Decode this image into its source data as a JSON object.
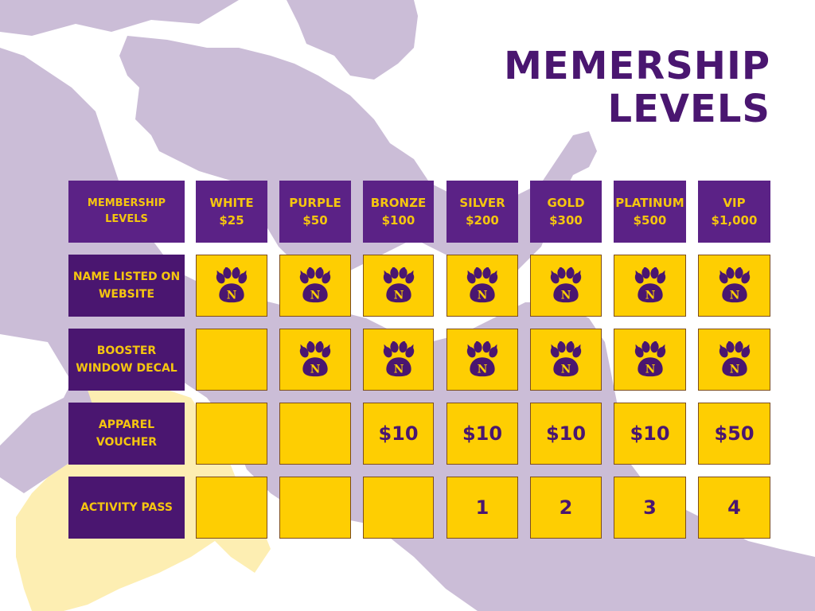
{
  "title": {
    "line1": "MEMERSHIP",
    "line2": "LEVELS"
  },
  "colors": {
    "purple": "#4a1670",
    "purple_header": "#5b2286",
    "gold": "#fece02",
    "lavender": "#cbbdd7",
    "cream": "#fdeeb2"
  },
  "table": {
    "corner_header": "MEMBERSHIP\nLEVELS",
    "levels": [
      {
        "name": "WHITE",
        "price": "$25"
      },
      {
        "name": "PURPLE",
        "price": "$50"
      },
      {
        "name": "BRONZE",
        "price": "$100"
      },
      {
        "name": "SILVER",
        "price": "$200"
      },
      {
        "name": "GOLD",
        "price": "$300"
      },
      {
        "name": "PLATINUM",
        "price": "$500"
      },
      {
        "name": "VIP",
        "price": "$1,000"
      }
    ],
    "rows": [
      {
        "label": "NAME LISTED ON\nWEBSITE",
        "cells": [
          "paw-icon",
          "paw-icon",
          "paw-icon",
          "paw-icon",
          "paw-icon",
          "paw-icon",
          "paw-icon"
        ]
      },
      {
        "label": "BOOSTER\nWINDOW DECAL",
        "cells": [
          "",
          "paw-icon",
          "paw-icon",
          "paw-icon",
          "paw-icon",
          "paw-icon",
          "paw-icon"
        ]
      },
      {
        "label": "APPAREL\nVOUCHER",
        "cells": [
          "",
          "",
          "$10",
          "$10",
          "$10",
          "$10",
          "$50"
        ]
      },
      {
        "label": "ACTIVITY PASS",
        "cells": [
          "",
          "",
          "",
          "1",
          "2",
          "3",
          "4"
        ]
      }
    ],
    "paw_letter": "N"
  }
}
